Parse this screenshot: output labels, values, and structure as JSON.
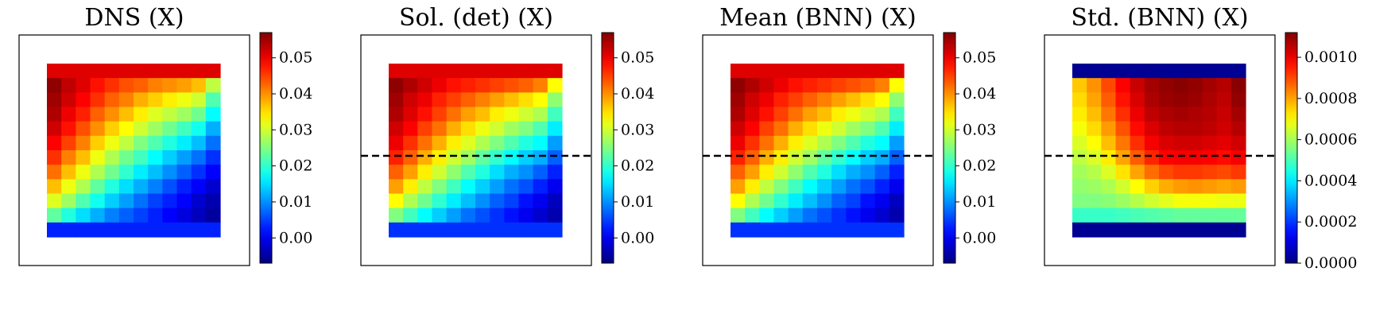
{
  "chart_data": [
    {
      "type": "heatmap",
      "title": "DNS (X)",
      "grid_rows": 12,
      "grid_cols": 12,
      "dashed_line": false,
      "colorbar": {
        "min": -0.007,
        "max": 0.057,
        "ticks": [
          0.0,
          0.01,
          0.02,
          0.03,
          0.04,
          0.05
        ],
        "tick_labels": [
          "0.00",
          "0.01",
          "0.02",
          "0.03",
          "0.04",
          "0.05"
        ]
      },
      "values": [
        [
          0.051,
          0.051,
          0.051,
          0.051,
          0.051,
          0.051,
          0.051,
          0.051,
          0.051,
          0.051,
          0.051,
          0.051
        ],
        [
          0.056,
          0.053,
          0.051,
          0.048,
          0.046,
          0.044,
          0.043,
          0.041,
          0.04,
          0.039,
          0.037,
          0.029
        ],
        [
          0.055,
          0.052,
          0.049,
          0.046,
          0.043,
          0.041,
          0.038,
          0.036,
          0.034,
          0.032,
          0.03,
          0.022
        ],
        [
          0.054,
          0.05,
          0.047,
          0.043,
          0.04,
          0.037,
          0.034,
          0.031,
          0.029,
          0.027,
          0.024,
          0.017
        ],
        [
          0.052,
          0.048,
          0.044,
          0.04,
          0.036,
          0.033,
          0.03,
          0.027,
          0.024,
          0.021,
          0.018,
          0.012
        ],
        [
          0.049,
          0.045,
          0.041,
          0.036,
          0.032,
          0.029,
          0.025,
          0.022,
          0.019,
          0.016,
          0.013,
          0.008
        ],
        [
          0.046,
          0.041,
          0.037,
          0.032,
          0.028,
          0.024,
          0.021,
          0.017,
          0.014,
          0.011,
          0.008,
          0.004
        ],
        [
          0.042,
          0.037,
          0.032,
          0.028,
          0.024,
          0.02,
          0.016,
          0.013,
          0.01,
          0.007,
          0.004,
          0.001
        ],
        [
          0.037,
          0.032,
          0.028,
          0.023,
          0.019,
          0.015,
          0.012,
          0.009,
          0.006,
          0.003,
          0.001,
          -0.002
        ],
        [
          0.031,
          0.027,
          0.022,
          0.018,
          0.014,
          0.011,
          0.008,
          0.005,
          0.003,
          0.001,
          -0.002,
          -0.004
        ],
        [
          0.023,
          0.019,
          0.015,
          0.012,
          0.009,
          0.007,
          0.005,
          0.003,
          0.001,
          -0.001,
          -0.003,
          -0.005
        ],
        [
          0.003,
          0.003,
          0.003,
          0.003,
          0.003,
          0.003,
          0.003,
          0.003,
          0.003,
          0.003,
          0.003,
          0.003
        ]
      ]
    },
    {
      "type": "heatmap",
      "title": "Sol. (det) (X)",
      "grid_rows": 12,
      "grid_cols": 12,
      "dashed_line": true,
      "colorbar": {
        "min": -0.007,
        "max": 0.057,
        "ticks": [
          0.0,
          0.01,
          0.02,
          0.03,
          0.04,
          0.05
        ],
        "tick_labels": [
          "0.00",
          "0.01",
          "0.02",
          "0.03",
          "0.04",
          "0.05"
        ]
      },
      "values": [
        [
          0.051,
          0.051,
          0.051,
          0.051,
          0.051,
          0.051,
          0.051,
          0.051,
          0.051,
          0.051,
          0.051,
          0.051
        ],
        [
          0.056,
          0.054,
          0.052,
          0.05,
          0.048,
          0.047,
          0.046,
          0.045,
          0.044,
          0.043,
          0.041,
          0.033
        ],
        [
          0.055,
          0.052,
          0.05,
          0.047,
          0.045,
          0.043,
          0.041,
          0.039,
          0.037,
          0.035,
          0.033,
          0.026
        ],
        [
          0.054,
          0.051,
          0.048,
          0.045,
          0.042,
          0.039,
          0.037,
          0.034,
          0.032,
          0.03,
          0.028,
          0.021
        ],
        [
          0.052,
          0.049,
          0.045,
          0.042,
          0.038,
          0.035,
          0.032,
          0.03,
          0.027,
          0.025,
          0.022,
          0.016
        ],
        [
          0.05,
          0.046,
          0.042,
          0.038,
          0.034,
          0.031,
          0.028,
          0.025,
          0.022,
          0.019,
          0.017,
          0.011
        ],
        [
          0.047,
          0.043,
          0.038,
          0.034,
          0.03,
          0.027,
          0.023,
          0.02,
          0.017,
          0.014,
          0.012,
          0.007
        ],
        [
          0.043,
          0.039,
          0.034,
          0.03,
          0.026,
          0.022,
          0.019,
          0.015,
          0.012,
          0.01,
          0.007,
          0.003
        ],
        [
          0.039,
          0.034,
          0.029,
          0.025,
          0.021,
          0.017,
          0.014,
          0.011,
          0.008,
          0.006,
          0.003,
          0.0
        ],
        [
          0.033,
          0.028,
          0.024,
          0.02,
          0.016,
          0.013,
          0.01,
          0.007,
          0.005,
          0.002,
          0.0,
          -0.003
        ],
        [
          0.025,
          0.021,
          0.017,
          0.014,
          0.011,
          0.008,
          0.006,
          0.004,
          0.002,
          0.0,
          -0.002,
          -0.004
        ],
        [
          0.004,
          0.004,
          0.004,
          0.004,
          0.004,
          0.004,
          0.004,
          0.004,
          0.004,
          0.004,
          0.004,
          0.004
        ]
      ]
    },
    {
      "type": "heatmap",
      "title": "Mean (BNN) (X)",
      "grid_rows": 12,
      "grid_cols": 12,
      "dashed_line": true,
      "colorbar": {
        "min": -0.007,
        "max": 0.057,
        "ticks": [
          0.0,
          0.01,
          0.02,
          0.03,
          0.04,
          0.05
        ],
        "tick_labels": [
          "0.00",
          "0.01",
          "0.02",
          "0.03",
          "0.04",
          "0.05"
        ]
      },
      "values": [
        [
          0.051,
          0.051,
          0.051,
          0.051,
          0.051,
          0.051,
          0.051,
          0.051,
          0.051,
          0.051,
          0.051,
          0.051
        ],
        [
          0.056,
          0.054,
          0.052,
          0.05,
          0.048,
          0.047,
          0.046,
          0.045,
          0.044,
          0.043,
          0.041,
          0.033
        ],
        [
          0.055,
          0.052,
          0.05,
          0.047,
          0.045,
          0.043,
          0.041,
          0.039,
          0.037,
          0.035,
          0.033,
          0.026
        ],
        [
          0.054,
          0.051,
          0.048,
          0.045,
          0.042,
          0.039,
          0.037,
          0.034,
          0.032,
          0.03,
          0.028,
          0.021
        ],
        [
          0.052,
          0.049,
          0.045,
          0.042,
          0.038,
          0.035,
          0.032,
          0.03,
          0.027,
          0.025,
          0.022,
          0.016
        ],
        [
          0.05,
          0.046,
          0.042,
          0.038,
          0.034,
          0.031,
          0.028,
          0.025,
          0.022,
          0.019,
          0.017,
          0.011
        ],
        [
          0.047,
          0.043,
          0.038,
          0.034,
          0.03,
          0.027,
          0.023,
          0.02,
          0.017,
          0.014,
          0.012,
          0.007
        ],
        [
          0.043,
          0.039,
          0.034,
          0.03,
          0.026,
          0.022,
          0.019,
          0.015,
          0.012,
          0.01,
          0.007,
          0.003
        ],
        [
          0.039,
          0.034,
          0.029,
          0.025,
          0.021,
          0.017,
          0.014,
          0.011,
          0.008,
          0.006,
          0.003,
          0.0
        ],
        [
          0.033,
          0.028,
          0.024,
          0.02,
          0.016,
          0.013,
          0.01,
          0.007,
          0.005,
          0.002,
          0.0,
          -0.003
        ],
        [
          0.025,
          0.021,
          0.017,
          0.014,
          0.011,
          0.008,
          0.006,
          0.004,
          0.002,
          0.0,
          -0.002,
          -0.004
        ],
        [
          0.004,
          0.004,
          0.004,
          0.004,
          0.004,
          0.004,
          0.004,
          0.004,
          0.004,
          0.004,
          0.004,
          0.004
        ]
      ]
    },
    {
      "type": "heatmap",
      "title": "Std. (BNN) (X)",
      "grid_rows": 12,
      "grid_cols": 12,
      "dashed_line": true,
      "colorbar": {
        "min": 0.0,
        "max": 0.00112,
        "ticks": [
          0.0,
          0.0002,
          0.0004,
          0.0006,
          0.0008,
          0.001
        ],
        "tick_labels": [
          "0.0000",
          "0.0002",
          "0.0004",
          "0.0006",
          "0.0008",
          "0.0010"
        ]
      },
      "values": [
        [
          2e-05,
          2e-05,
          2e-05,
          2e-05,
          2e-05,
          2e-05,
          2e-05,
          2e-05,
          2e-05,
          2e-05,
          2e-05,
          2e-05
        ],
        [
          0.00076,
          0.00082,
          0.0009,
          0.00098,
          0.00104,
          0.00108,
          0.0011,
          0.00111,
          0.0011,
          0.00108,
          0.00106,
          0.00111
        ],
        [
          0.00074,
          0.0008,
          0.00088,
          0.00096,
          0.00102,
          0.00107,
          0.00109,
          0.0011,
          0.00109,
          0.00107,
          0.00105,
          0.0011
        ],
        [
          0.00072,
          0.00077,
          0.00085,
          0.00093,
          0.001,
          0.00105,
          0.00107,
          0.00108,
          0.00107,
          0.00106,
          0.00104,
          0.00108
        ],
        [
          0.00069,
          0.00074,
          0.00081,
          0.00089,
          0.00097,
          0.00102,
          0.00105,
          0.00106,
          0.00106,
          0.00105,
          0.00103,
          0.00106
        ],
        [
          0.00066,
          0.0007,
          0.00077,
          0.00085,
          0.00093,
          0.00099,
          0.00102,
          0.00103,
          0.00103,
          0.00102,
          0.00101,
          0.00103
        ],
        [
          0.00063,
          0.00066,
          0.00072,
          0.0008,
          0.00088,
          0.00094,
          0.00098,
          0.00099,
          0.00099,
          0.00098,
          0.00097,
          0.00099
        ],
        [
          0.0006,
          0.00062,
          0.00066,
          0.00073,
          0.0008,
          0.00086,
          0.0009,
          0.00092,
          0.00092,
          0.00091,
          0.0009,
          0.00092
        ],
        [
          0.00058,
          0.00059,
          0.00061,
          0.00065,
          0.0007,
          0.00075,
          0.00079,
          0.00081,
          0.00082,
          0.00081,
          0.0008,
          0.00081
        ],
        [
          0.00056,
          0.00056,
          0.00057,
          0.00059,
          0.00062,
          0.00065,
          0.00067,
          0.00069,
          0.00069,
          0.00069,
          0.00068,
          0.00068
        ],
        [
          0.00048,
          0.00048,
          0.00048,
          0.00049,
          0.0005,
          0.00051,
          0.00052,
          0.00053,
          0.00053,
          0.00053,
          0.00053,
          0.00053
        ],
        [
          2e-05,
          2e-05,
          2e-05,
          2e-05,
          2e-05,
          2e-05,
          2e-05,
          2e-05,
          2e-05,
          2e-05,
          2e-05,
          2e-05
        ]
      ]
    }
  ]
}
